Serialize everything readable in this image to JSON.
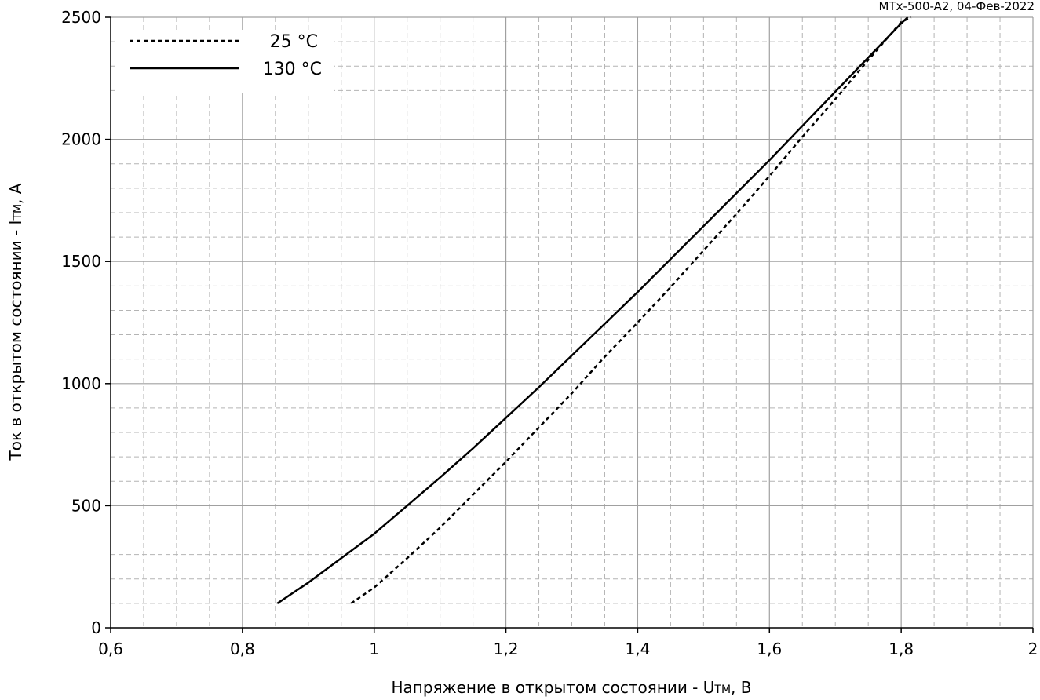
{
  "chart_data": {
    "type": "line",
    "annotation": "MTx-500-A2, 04-Фев-2022",
    "xlabel_main": "Напряжение в открытом состоянии - U",
    "xlabel_sub": "TM",
    "xlabel_tail": ", В",
    "ylabel_main": "Ток в открытом состоянии - I",
    "ylabel_sub": "TM",
    "ylabel_tail": ", А",
    "xlim": [
      0.6,
      2.0
    ],
    "ylim": [
      0,
      2500
    ],
    "x_ticks": [
      0.6,
      0.8,
      1.0,
      1.2,
      1.4,
      1.6,
      1.8,
      2.0
    ],
    "x_tick_labels": [
      "0,6",
      "0,8",
      "1",
      "1,2",
      "1,4",
      "1,6",
      "1,8",
      "2"
    ],
    "y_ticks": [
      0,
      500,
      1000,
      1500,
      2000,
      2500
    ],
    "y_tick_labels": [
      "0",
      "500",
      "1000",
      "1500",
      "2000",
      "2500"
    ],
    "grid": true,
    "legend_position": "top-left",
    "series": [
      {
        "name": "25 °C",
        "style": "dashed",
        "color": "#000000",
        "x": [
          0.965,
          1.0,
          1.05,
          1.1,
          1.15,
          1.2,
          1.25,
          1.3,
          1.35,
          1.4,
          1.45,
          1.5,
          1.55,
          1.6,
          1.65,
          1.7,
          1.75,
          1.8,
          1.815
        ],
        "y": [
          100,
          165,
          285,
          410,
          545,
          680,
          820,
          960,
          1110,
          1250,
          1395,
          1545,
          1695,
          1850,
          2010,
          2165,
          2325,
          2480,
          2500
        ]
      },
      {
        "name": "130 °C",
        "style": "solid",
        "color": "#000000",
        "x": [
          0.853,
          0.9,
          0.95,
          1.0,
          1.05,
          1.1,
          1.15,
          1.2,
          1.25,
          1.3,
          1.35,
          1.4,
          1.45,
          1.5,
          1.55,
          1.6,
          1.65,
          1.7,
          1.75,
          1.8,
          1.81
        ],
        "y": [
          100,
          185,
          285,
          385,
          500,
          615,
          735,
          860,
          985,
          1115,
          1245,
          1375,
          1510,
          1645,
          1780,
          1915,
          2055,
          2195,
          2335,
          2475,
          2500
        ]
      }
    ]
  }
}
